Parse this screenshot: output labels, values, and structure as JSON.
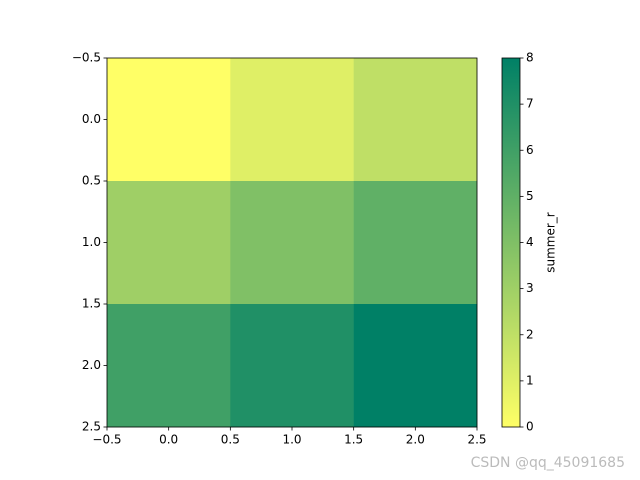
{
  "chart_data": {
    "type": "heatmap",
    "values": [
      [
        0,
        1,
        2
      ],
      [
        3,
        4,
        5
      ],
      [
        6,
        7,
        8
      ]
    ],
    "cmap_colors": [
      "#ffff66",
      "#008066"
    ],
    "clim": [
      0,
      8
    ],
    "xlim": [
      -0.5,
      2.5
    ],
    "ylim": [
      2.5,
      -0.5
    ],
    "xticks": [
      {
        "value": -0.5,
        "label": "−0.5"
      },
      {
        "value": 0,
        "label": "0.0"
      },
      0.5,
      {
        "value": 1,
        "label": "1.0"
      },
      1.5,
      {
        "value": 2,
        "label": "2.0"
      },
      2.5
    ],
    "yticks": [
      {
        "value": -0.5,
        "label": "−0.5"
      },
      {
        "value": 0,
        "label": "0.0"
      },
      0.5,
      {
        "value": 1,
        "label": "1.0"
      },
      1.5,
      {
        "value": 2,
        "label": "2.0"
      },
      2.5
    ],
    "colorbar_ticks": [
      0,
      1,
      2,
      3,
      4,
      5,
      6,
      7,
      8
    ],
    "colorbar_label": "summer_r",
    "watermark": "CSDN @qq_45091685"
  }
}
